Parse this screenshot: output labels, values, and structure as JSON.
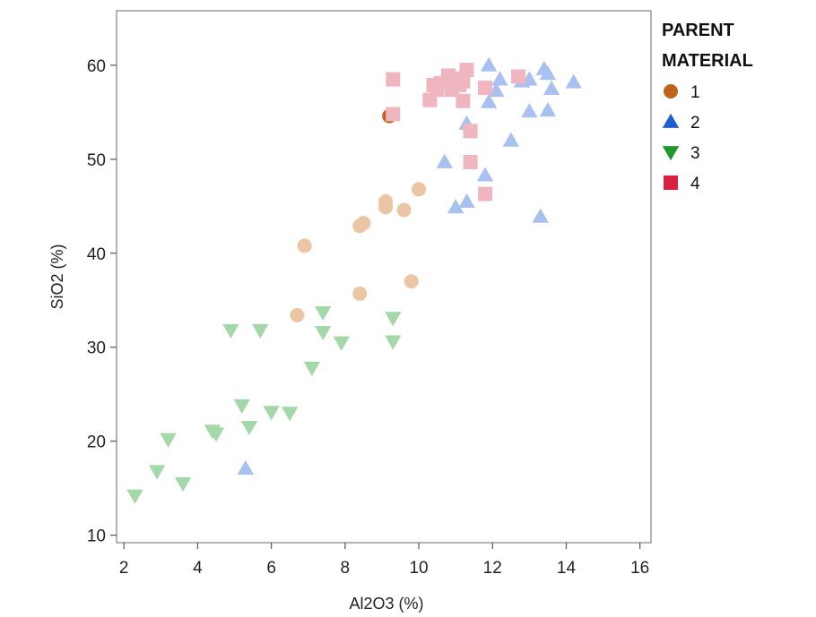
{
  "chart_data": {
    "type": "scatter",
    "title": "",
    "xlabel": "Al2O3 (%)",
    "ylabel": "SiO2 (%)",
    "xlim": [
      1.8,
      16.3
    ],
    "ylim": [
      9.2,
      65.8
    ],
    "x_ticks": [
      2,
      4,
      6,
      8,
      10,
      12,
      14,
      16
    ],
    "y_ticks": [
      10,
      20,
      30,
      40,
      50,
      60
    ],
    "grid": false,
    "legend": {
      "title_lines": [
        "PARENT",
        "MATERIAL"
      ],
      "position": "right"
    },
    "series": [
      {
        "name": "1",
        "marker": "circle",
        "color": "#C0621A",
        "faded_color": "#EBC5A4",
        "highlight": [
          [
            9.2,
            54.6
          ]
        ],
        "points": [
          [
            6.7,
            33.4
          ],
          [
            6.9,
            40.8
          ],
          [
            8.4,
            35.7
          ],
          [
            8.4,
            42.9
          ],
          [
            8.5,
            43.2
          ],
          [
            9.1,
            44.9
          ],
          [
            9.1,
            45.5
          ],
          [
            9.6,
            44.6
          ],
          [
            9.8,
            37.0
          ],
          [
            10.0,
            46.8
          ]
        ]
      },
      {
        "name": "2",
        "marker": "triangle-up",
        "color": "#1F5FD6",
        "faded_color": "#A9C1EE",
        "highlight": [],
        "points": [
          [
            5.3,
            17.1
          ],
          [
            10.7,
            49.7
          ],
          [
            11.0,
            44.9
          ],
          [
            11.3,
            45.5
          ],
          [
            11.3,
            53.8
          ],
          [
            11.8,
            48.3
          ],
          [
            11.9,
            56.1
          ],
          [
            11.9,
            60.0
          ],
          [
            12.1,
            57.3
          ],
          [
            12.2,
            58.5
          ],
          [
            12.5,
            52.0
          ],
          [
            12.8,
            58.3
          ],
          [
            13.0,
            58.5
          ],
          [
            13.0,
            55.1
          ],
          [
            13.3,
            43.9
          ],
          [
            13.4,
            59.6
          ],
          [
            13.5,
            55.2
          ],
          [
            13.5,
            59.1
          ],
          [
            13.6,
            57.5
          ],
          [
            14.2,
            58.2
          ]
        ]
      },
      {
        "name": "3",
        "marker": "triangle-down",
        "color": "#1E9A2A",
        "faded_color": "#A5D8A8",
        "highlight": [],
        "points": [
          [
            2.3,
            14.2
          ],
          [
            2.9,
            16.8
          ],
          [
            3.2,
            20.2
          ],
          [
            3.6,
            15.5
          ],
          [
            4.4,
            21.1
          ],
          [
            4.5,
            20.8
          ],
          [
            4.9,
            31.8
          ],
          [
            5.2,
            23.8
          ],
          [
            5.4,
            21.5
          ],
          [
            5.7,
            31.8
          ],
          [
            6.0,
            23.1
          ],
          [
            6.5,
            23.0
          ],
          [
            7.1,
            27.8
          ],
          [
            7.4,
            33.7
          ],
          [
            7.4,
            31.6
          ],
          [
            7.9,
            30.5
          ],
          [
            9.3,
            33.1
          ],
          [
            9.3,
            30.6
          ]
        ]
      },
      {
        "name": "4",
        "marker": "square",
        "color": "#D62240",
        "faded_color": "#F0B6C0",
        "highlight": [],
        "points": [
          [
            9.3,
            58.5
          ],
          [
            9.3,
            54.8
          ],
          [
            10.3,
            56.3
          ],
          [
            10.4,
            57.9
          ],
          [
            10.5,
            57.4
          ],
          [
            10.6,
            58.1
          ],
          [
            10.8,
            58.9
          ],
          [
            10.9,
            57.4
          ],
          [
            11.0,
            58.6
          ],
          [
            11.1,
            57.9
          ],
          [
            11.2,
            58.3
          ],
          [
            11.2,
            56.2
          ],
          [
            11.3,
            59.5
          ],
          [
            11.4,
            53.0
          ],
          [
            11.4,
            49.7
          ],
          [
            11.8,
            57.6
          ],
          [
            11.8,
            46.3
          ],
          [
            12.7,
            58.8
          ]
        ]
      }
    ]
  }
}
